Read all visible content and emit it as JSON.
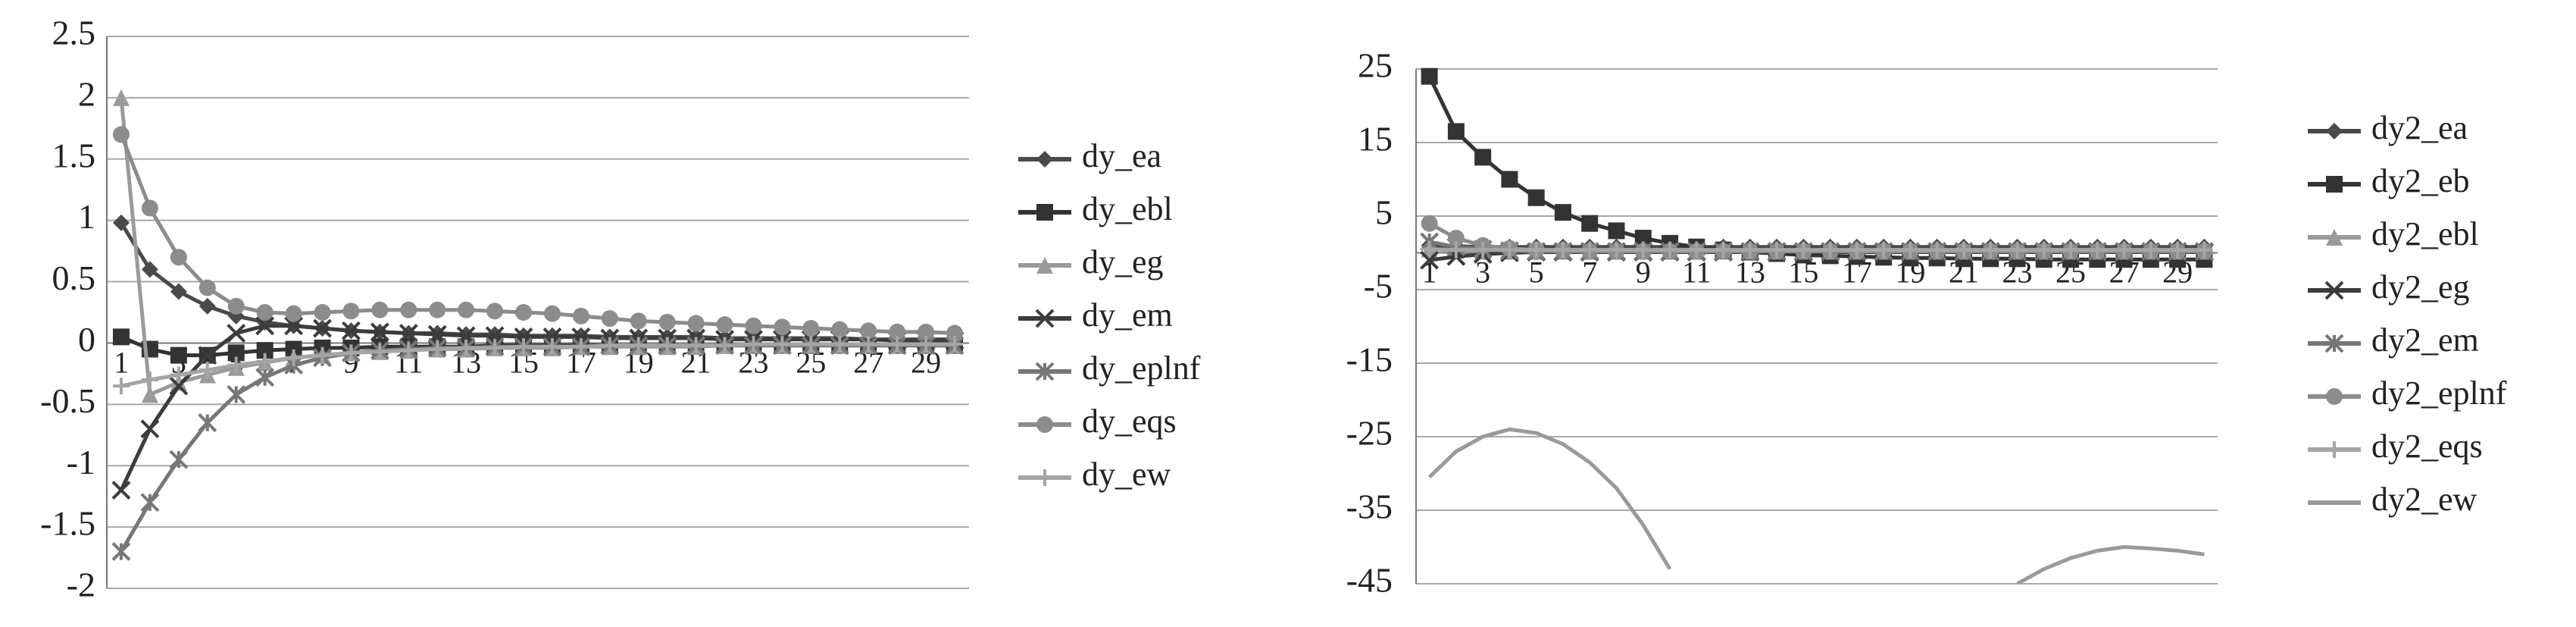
{
  "chart_data": [
    {
      "type": "line",
      "categories": [
        "1",
        null,
        "3",
        null,
        "5",
        null,
        "7",
        null,
        "9",
        null,
        "11",
        null,
        "13",
        null,
        "15",
        null,
        "17",
        null,
        "19",
        null,
        "21",
        null,
        "23",
        null,
        "25",
        null,
        "27",
        null,
        "29",
        null
      ],
      "ylim": [
        -2,
        2.5
      ],
      "yticks": [
        2.5,
        2,
        1.5,
        1,
        0.5,
        0,
        -0.5,
        -1,
        -1.5,
        -2
      ],
      "grid": true,
      "legend": "right",
      "series": [
        {
          "name": "dy_ea",
          "color": "#4a4a4a",
          "marker": "diamond",
          "values": [
            0.98,
            0.6,
            0.42,
            0.3,
            0.22,
            0.17,
            0.14,
            0.12,
            0.1,
            0.09,
            0.08,
            0.08,
            0.07,
            0.07,
            0.06,
            0.06,
            0.06,
            0.05,
            0.05,
            0.05,
            0.05,
            0.04,
            0.04,
            0.04,
            0.04,
            0.04,
            0.03,
            0.03,
            0.03,
            0.03
          ]
        },
        {
          "name": "dy_ebl",
          "color": "#333333",
          "marker": "square",
          "values": [
            0.05,
            -0.05,
            -0.1,
            -0.1,
            -0.08,
            -0.06,
            -0.05,
            -0.04,
            -0.04,
            -0.03,
            -0.03,
            -0.03,
            -0.03,
            -0.02,
            -0.02,
            -0.02,
            -0.02,
            -0.02,
            -0.02,
            -0.02,
            -0.02,
            -0.02,
            -0.02,
            -0.02,
            -0.02,
            -0.02,
            -0.02,
            -0.02,
            -0.02,
            -0.02
          ]
        },
        {
          "name": "dy_eg",
          "color": "#9a9a9a",
          "marker": "triangle",
          "values": [
            2,
            -0.42,
            -0.32,
            -0.26,
            -0.2,
            -0.16,
            -0.12,
            -0.1,
            -0.08,
            -0.07,
            -0.06,
            -0.05,
            -0.05,
            -0.04,
            -0.04,
            -0.04,
            -0.03,
            -0.03,
            -0.03,
            -0.03,
            -0.03,
            -0.02,
            -0.02,
            -0.02,
            -0.02,
            -0.02,
            -0.02,
            -0.02,
            -0.02,
            -0.02
          ]
        },
        {
          "name": "dy_em",
          "color": "#3c3c3c",
          "marker": "x",
          "values": [
            -1.2,
            -0.7,
            -0.35,
            -0.1,
            0.08,
            0.14,
            0.14,
            0.12,
            0.1,
            0.09,
            0.08,
            0.07,
            0.06,
            0.06,
            0.05,
            0.05,
            0.05,
            0.04,
            0.04,
            0.04,
            0.04,
            0.03,
            0.03,
            0.03,
            0.03,
            0.03,
            0.03,
            0.02,
            0.02,
            0.02
          ]
        },
        {
          "name": "dy_eplnf",
          "color": "#777777",
          "marker": "asterisk",
          "values": [
            -1.7,
            -1.3,
            -0.95,
            -0.65,
            -0.42,
            -0.28,
            -0.18,
            -0.12,
            -0.08,
            -0.06,
            -0.05,
            -0.04,
            -0.04,
            -0.03,
            -0.03,
            -0.03,
            -0.03,
            -0.02,
            -0.02,
            -0.02,
            -0.02,
            -0.02,
            -0.02,
            -0.02,
            -0.02,
            -0.02,
            -0.02,
            -0.02,
            -0.02,
            -0.02
          ]
        },
        {
          "name": "dy_eqs",
          "color": "#8c8c8c",
          "marker": "circle",
          "values": [
            1.7,
            1.1,
            0.7,
            0.45,
            0.3,
            0.25,
            0.24,
            0.25,
            0.26,
            0.27,
            0.27,
            0.27,
            0.27,
            0.26,
            0.25,
            0.24,
            0.22,
            0.2,
            0.18,
            0.17,
            0.16,
            0.15,
            0.14,
            0.13,
            0.12,
            0.11,
            0.1,
            0.09,
            0.09,
            0.08
          ]
        },
        {
          "name": "dy_ew",
          "color": "#a5a5a5",
          "marker": "plus",
          "values": [
            -0.35,
            -0.3,
            -0.26,
            -0.22,
            -0.18,
            -0.15,
            -0.12,
            -0.1,
            -0.08,
            -0.07,
            -0.06,
            -0.05,
            -0.04,
            -0.04,
            -0.03,
            -0.03,
            -0.03,
            -0.02,
            -0.02,
            -0.02,
            -0.02,
            -0.02,
            -0.01,
            -0.01,
            -0.01,
            -0.01,
            -0.01,
            -0.01,
            -0.01,
            -0.01
          ]
        }
      ]
    },
    {
      "type": "line",
      "categories": [
        "1",
        null,
        "3",
        null,
        "5",
        null,
        "7",
        null,
        "9",
        null,
        "11",
        null,
        "13",
        null,
        "15",
        null,
        "17",
        null,
        "19",
        null,
        "21",
        null,
        "23",
        null,
        "25",
        null,
        "27",
        null,
        "29",
        null
      ],
      "ylim": [
        -45,
        25
      ],
      "yticks": [
        25,
        15,
        5,
        -5,
        -15,
        -25,
        -35,
        -45
      ],
      "grid": true,
      "legend": "right",
      "series": [
        {
          "name": "dy2_ea",
          "color": "#4a4a4a",
          "marker": "diamond",
          "values": [
            1,
            0.9,
            0.8,
            0.8,
            0.8,
            0.8,
            0.8,
            0.8,
            0.8,
            0.8,
            0.8,
            0.8,
            0.8,
            0.8,
            0.8,
            0.8,
            0.8,
            0.8,
            0.8,
            0.8,
            0.8,
            0.8,
            0.8,
            0.8,
            0.8,
            0.8,
            0.8,
            0.8,
            0.8,
            0.8
          ]
        },
        {
          "name": "dy2_eb",
          "color": "#333333",
          "marker": "square",
          "values": [
            24,
            16.5,
            13,
            10,
            7.5,
            5.5,
            4,
            3,
            2,
            1.3,
            0.8,
            0.4,
            0.1,
            -0.1,
            -0.3,
            -0.4,
            -0.5,
            -0.6,
            -0.7,
            -0.7,
            -0.8,
            -0.8,
            -0.8,
            -0.9,
            -0.9,
            -0.9,
            -0.9,
            -0.9,
            -0.9,
            -0.9
          ]
        },
        {
          "name": "dy2_ebl",
          "color": "#9a9a9a",
          "marker": "triangle",
          "values": [
            0.5,
            0.3,
            0.2,
            0.2,
            0.2,
            0.2,
            0.2,
            0.2,
            0.2,
            0.2,
            0.2,
            0.2,
            0.2,
            0.2,
            0.2,
            0.2,
            0.2,
            0.2,
            0.2,
            0.2,
            0.2,
            0.2,
            0.2,
            0.2,
            0.2,
            0.2,
            0.2,
            0.2,
            0.2,
            0.2
          ]
        },
        {
          "name": "dy2_eg",
          "color": "#3c3c3c",
          "marker": "x",
          "values": [
            -1,
            -0.5,
            -0.2,
            0,
            0.1,
            0.1,
            0.1,
            0.1,
            0.1,
            0.1,
            0.1,
            0.1,
            0.1,
            0.1,
            0.1,
            0.1,
            0.1,
            0.1,
            0.1,
            0.1,
            0.1,
            0.1,
            0.1,
            0.1,
            0.1,
            0.1,
            0.1,
            0.1,
            0.1,
            0.1
          ]
        },
        {
          "name": "dy2_em",
          "color": "#777777",
          "marker": "asterisk",
          "values": [
            1.5,
            0.8,
            0.5,
            0.3,
            0.2,
            0.2,
            0.2,
            0.2,
            0.2,
            0.2,
            0.2,
            0.2,
            0.2,
            0.2,
            0.2,
            0.2,
            0.2,
            0.2,
            0.2,
            0.2,
            0.2,
            0.2,
            0.2,
            0.2,
            0.2,
            0.2,
            0.2,
            0.2,
            0.2,
            0.2
          ]
        },
        {
          "name": "dy2_eplnf",
          "color": "#8c8c8c",
          "marker": "circle",
          "values": [
            4,
            2,
            1,
            0.6,
            0.4,
            0.3,
            0.2,
            0.2,
            0.2,
            0.2,
            0.2,
            0.2,
            0.2,
            0.2,
            0.2,
            0.2,
            0.2,
            0.2,
            0.2,
            0.2,
            0.2,
            0.2,
            0.2,
            0.2,
            0.2,
            0.2,
            0.2,
            0.2,
            0.2,
            0.2
          ]
        },
        {
          "name": "dy2_eqs",
          "color": "#a5a5a5",
          "marker": "plus",
          "values": [
            0.5,
            0.4,
            0.4,
            0.4,
            0.4,
            0.4,
            0.4,
            0.4,
            0.4,
            0.4,
            0.4,
            0.4,
            0.4,
            0.4,
            0.4,
            0.4,
            0.4,
            0.4,
            0.4,
            0.4,
            0.4,
            0.4,
            0.4,
            0.4,
            0.4,
            0.4,
            0.4,
            0.4,
            0.4,
            0.4
          ]
        },
        {
          "name": "dy2_ew",
          "color": "#9a9a9a",
          "marker": "none",
          "values": [
            -30.5,
            -27,
            -25,
            -24,
            -24.5,
            -26,
            -28.5,
            -32,
            -37,
            -43,
            null,
            null,
            null,
            null,
            null,
            null,
            null,
            null,
            null,
            null,
            null,
            null,
            -45,
            -43,
            -41.5,
            -40.5,
            -40,
            -40.2,
            -40.5,
            -41
          ]
        }
      ]
    }
  ]
}
